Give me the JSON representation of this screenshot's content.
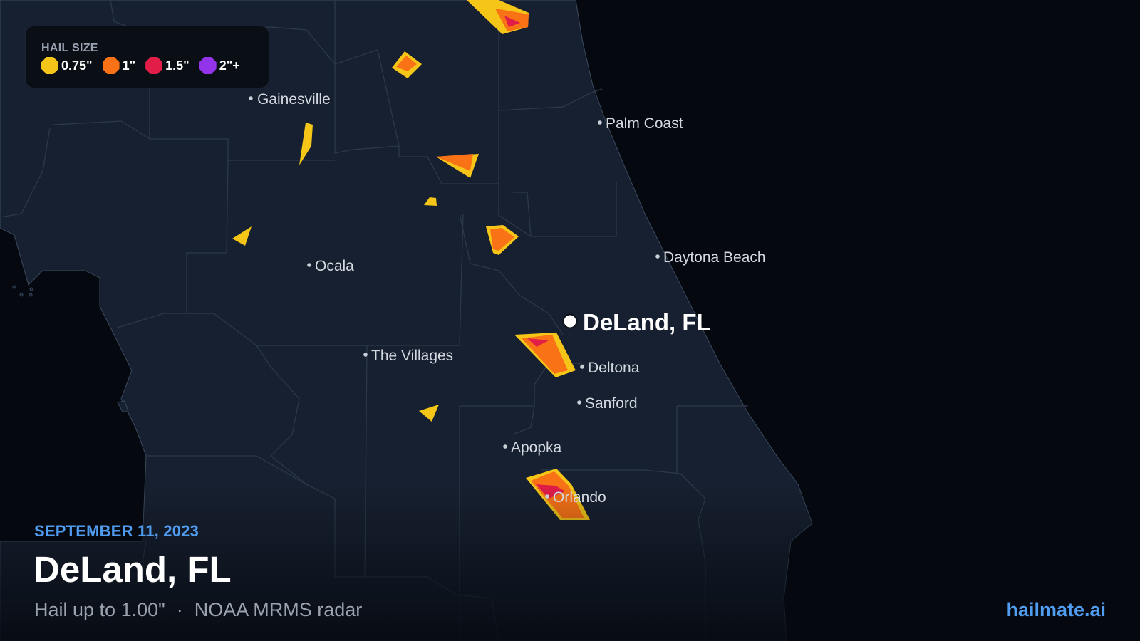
{
  "legend": {
    "title": "HAIL SIZE",
    "items": [
      {
        "label": "0.75\"",
        "color": "#f5c518"
      },
      {
        "label": "1\"",
        "color": "#f97316"
      },
      {
        "label": "1.5\"",
        "color": "#e11d48"
      },
      {
        "label": "2\"+",
        "color": "#9333ea"
      }
    ]
  },
  "cities": [
    {
      "name": "Gainesville"
    },
    {
      "name": "Palm Coast"
    },
    {
      "name": "Ocala"
    },
    {
      "name": "Daytona Beach"
    },
    {
      "name": "The Villages"
    },
    {
      "name": "Deltona"
    },
    {
      "name": "Sanford"
    },
    {
      "name": "Apopka"
    },
    {
      "name": "Orlando"
    }
  ],
  "focus_location": "DeLand, FL",
  "footer": {
    "date": "SEPTEMBER 11, 2023",
    "title": "DeLand, FL",
    "hail_max": "Hail up to 1.00\"",
    "separator": "·",
    "source": "NOAA MRMS radar",
    "brand": "hailmate.ai"
  },
  "colors": {
    "land": "#172030",
    "water": "#05090f",
    "county_border": "#2c3848",
    "accent": "#4f9cf0"
  }
}
